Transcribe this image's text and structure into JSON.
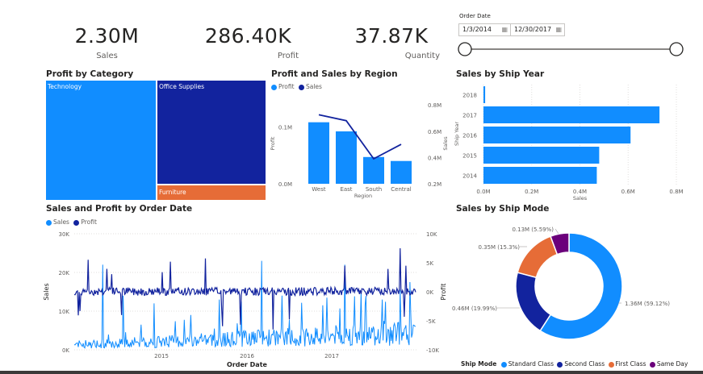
{
  "kpis": [
    {
      "value": "2.30M",
      "label": "Sales"
    },
    {
      "value": "286.40K",
      "label": "Profit"
    },
    {
      "value": "37.87K",
      "label": "Quantity"
    }
  ],
  "order_date_filter": {
    "label": "Order Date",
    "start": "1/3/2014",
    "end": "12/30/2017",
    "icon": "calendar-icon"
  },
  "colors": {
    "sales": "#118DFF",
    "profit": "#12239E",
    "furniture": "#E66C37",
    "sameday": "#6B007B"
  },
  "chart_data": [
    {
      "type": "treemap",
      "title": "Profit by Category",
      "categories": [
        "Technology",
        "Office Supplies",
        "Furniture"
      ],
      "values": [
        145000,
        122000,
        19000
      ]
    },
    {
      "type": "bar+line",
      "title": "Profit and Sales by Region",
      "legend": [
        "Profit",
        "Sales"
      ],
      "categories": [
        "West",
        "East",
        "South",
        "Central"
      ],
      "xlabel": "Region",
      "ylabel_left": "Profit",
      "ylabel_right": "Sales",
      "left_ticks": [
        "0.0M",
        "0.1M"
      ],
      "right_ticks": [
        "0.2M",
        "0.4M",
        "0.6M",
        "0.8M"
      ],
      "series": [
        {
          "name": "Profit",
          "values": [
            108000,
            92000,
            47000,
            40000
          ]
        },
        {
          "name": "Sales",
          "values": [
            725000,
            680000,
            390000,
            500000
          ]
        }
      ]
    },
    {
      "type": "bar",
      "orientation": "horizontal",
      "title": "Sales by Ship Year",
      "ylabel": "Ship Year",
      "xlabel": "Sales",
      "categories": [
        "2018",
        "2017",
        "2016",
        "2015",
        "2014"
      ],
      "values": [
        7000,
        730000,
        610000,
        480000,
        470000
      ],
      "x_ticks": [
        "0.0M",
        "0.2M",
        "0.4M",
        "0.6M",
        "0.8M"
      ],
      "xlim": [
        0,
        800000
      ]
    },
    {
      "type": "line",
      "title": "Sales and Profit by Order Date",
      "legend": [
        "Sales",
        "Profit"
      ],
      "xlabel": "Order Date",
      "ylabel_left": "Sales",
      "ylabel_right": "Profit",
      "x_ticks": [
        "2015",
        "2016",
        "2017"
      ],
      "left_ticks": [
        "0K",
        "10K",
        "20K",
        "30K"
      ],
      "right_ticks": [
        "-10K",
        "-5K",
        "0K",
        "5K",
        "10K"
      ],
      "ylim_left": [
        0,
        30000
      ],
      "ylim_right": [
        -10000,
        10000
      ],
      "xlim": [
        "2014-01-03",
        "2017-12-30"
      ]
    },
    {
      "type": "pie",
      "title": "Sales by Ship Mode",
      "legend_title": "Ship Mode",
      "categories": [
        "Standard Class",
        "Second Class",
        "First Class",
        "Same Day"
      ],
      "values": [
        1360000,
        460000,
        350000,
        130000
      ],
      "labels": [
        "1.36M (59.12%)",
        "0.46M (19.99%)",
        "0.35M (15.3%)",
        "0.13M (5.59%)"
      ]
    }
  ]
}
